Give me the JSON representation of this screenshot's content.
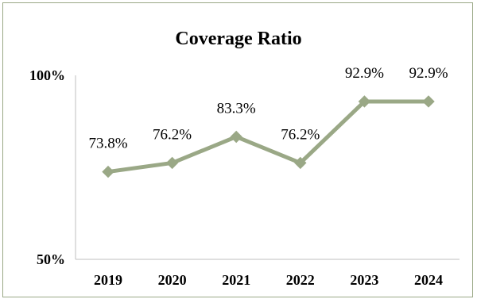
{
  "chart_data": {
    "type": "line",
    "title": "Coverage Ratio",
    "categories": [
      "2019",
      "2020",
      "2021",
      "2022",
      "2023",
      "2024"
    ],
    "series": [
      {
        "values": [
          73.8,
          76.2,
          83.3,
          76.2,
          92.9,
          92.9
        ]
      }
    ],
    "data_labels": [
      "73.8%",
      "76.2%",
      "83.3%",
      "76.2%",
      "92.9%",
      "92.9%"
    ],
    "y_ticks": [
      "50%",
      "100%"
    ],
    "ylim": [
      50,
      100
    ],
    "grid": false,
    "line_color": "#9aa886",
    "marker": "diamond"
  }
}
